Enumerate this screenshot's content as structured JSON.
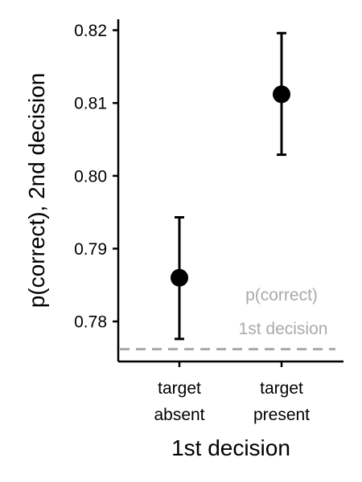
{
  "chart_data": {
    "type": "scatter",
    "title": "",
    "xlabel": "1st decision",
    "ylabel": "p(correct), 2nd decision",
    "categories": [
      {
        "line1": "target",
        "line2": "absent"
      },
      {
        "line1": "target",
        "line2": "present"
      }
    ],
    "points": [
      {
        "category": "target absent",
        "value": 0.786,
        "lower": 0.7776,
        "upper": 0.7943
      },
      {
        "category": "target present",
        "value": 0.8112,
        "lower": 0.8029,
        "upper": 0.8196
      }
    ],
    "ylim": [
      0.7745,
      0.8215
    ],
    "yticks": [
      {
        "value": 0.78,
        "label": "0.78"
      },
      {
        "value": 0.79,
        "label": "0.79"
      },
      {
        "value": 0.8,
        "label": "0.80"
      },
      {
        "value": 0.81,
        "label": "0.81"
      },
      {
        "value": 0.82,
        "label": "0.82"
      }
    ],
    "reference_line": {
      "value": 0.7762,
      "label_line1": "p(correct)",
      "label_line2": "1st decision",
      "color": "#aaaaaa",
      "style": "dashed"
    },
    "grid": false,
    "point_color": "#000000"
  }
}
